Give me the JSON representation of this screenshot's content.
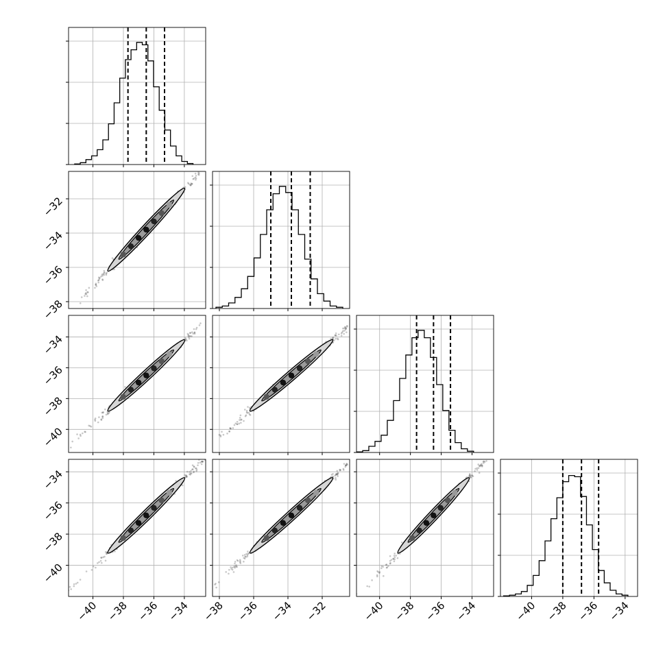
{
  "chart_data": {
    "type": "corner",
    "n_params": 4,
    "grid": true,
    "colors": {
      "line": "#000000",
      "grid": "#b0b0b0",
      "frame": "#000000"
    },
    "params": [
      {
        "quantiles": [
          -37.7,
          -36.5,
          -35.3
        ],
        "bin_start": -41.2,
        "bin_width": 0.37,
        "counts": [
          0.005,
          0.015,
          0.04,
          0.07,
          0.12,
          0.2,
          0.33,
          0.5,
          0.7,
          0.85,
          0.93,
          0.99,
          0.97,
          0.84,
          0.63,
          0.44,
          0.28,
          0.15,
          0.07,
          0.025,
          0.008
        ]
      },
      {
        "quantiles": [
          -35.0,
          -33.8,
          -32.7
        ],
        "bin_start": -38.2,
        "bin_width": 0.37,
        "counts": [
          0.01,
          0.02,
          0.045,
          0.09,
          0.16,
          0.26,
          0.41,
          0.6,
          0.8,
          0.93,
          0.99,
          0.94,
          0.8,
          0.6,
          0.4,
          0.24,
          0.12,
          0.06,
          0.02,
          0.01
        ]
      },
      {
        "quantiles": [
          -37.6,
          -36.5,
          -35.4
        ],
        "bin_start": -41.5,
        "bin_width": 0.4,
        "counts": [
          0.005,
          0.015,
          0.05,
          0.09,
          0.14,
          0.26,
          0.42,
          0.6,
          0.79,
          0.93,
          0.99,
          0.93,
          0.77,
          0.55,
          0.34,
          0.18,
          0.08,
          0.03,
          0.01
        ]
      },
      {
        "quantiles": [
          -38.0,
          -36.8,
          -35.7
        ],
        "bin_start": -41.8,
        "bin_width": 0.38,
        "counts": [
          0.005,
          0.01,
          0.02,
          0.04,
          0.09,
          0.17,
          0.29,
          0.45,
          0.63,
          0.8,
          0.93,
          0.98,
          0.97,
          0.81,
          0.58,
          0.38,
          0.21,
          0.11,
          0.05,
          0.02,
          0.01
        ]
      }
    ],
    "axis_ranges": [
      [
        -41.6,
        -32.6
      ],
      [
        -38.4,
        -30.4
      ],
      [
        -41.5,
        -32.6
      ],
      [
        -42.0,
        -33.2
      ]
    ],
    "ticks": {
      "0": [
        "−40",
        "−38",
        "−36",
        "−34"
      ],
      "1": [
        "−38",
        "−36",
        "−34",
        "−32"
      ],
      "2": [
        "−40",
        "−38",
        "−36",
        "−34"
      ],
      "3": [
        "−40",
        "−38",
        "−36",
        "−34"
      ]
    },
    "tick_values": [
      [
        -40,
        -38,
        -36,
        -34
      ],
      [
        -38,
        -36,
        -34,
        -32
      ],
      [
        -40,
        -38,
        -36,
        -34
      ],
      [
        -40,
        -38,
        -36,
        -34
      ]
    ],
    "ylabels_left": {
      "row1": [
        "−32",
        "−34",
        "−36",
        "−38"
      ],
      "row2": [
        "−34",
        "−36",
        "−38",
        "−40"
      ],
      "row3": [
        "−34",
        "−36",
        "−38",
        "−40"
      ]
    },
    "ylabel_values": {
      "row1": [
        -32,
        -34,
        -36,
        -38
      ],
      "row2": [
        -34,
        -36,
        -38,
        -40
      ],
      "row3": [
        -34,
        -36,
        -38,
        -40
      ]
    },
    "xlabels_bottom": [
      "−40",
      "−38",
      "−36",
      "−34",
      "−38",
      "−36",
      "−34",
      "−32",
      "−40",
      "−38",
      "−36",
      "−34",
      "−40",
      "−38",
      "−36",
      "−34"
    ],
    "correlations": [
      {
        "row": 1,
        "col": 0,
        "slope": 1.0
      },
      {
        "row": 2,
        "col": 0,
        "slope": 1.0
      },
      {
        "row": 2,
        "col": 1,
        "slope": 1.0
      },
      {
        "row": 3,
        "col": 0,
        "slope": 1.0
      },
      {
        "row": 3,
        "col": 1,
        "slope": 1.0
      },
      {
        "row": 3,
        "col": 2,
        "slope": 1.0
      }
    ]
  }
}
